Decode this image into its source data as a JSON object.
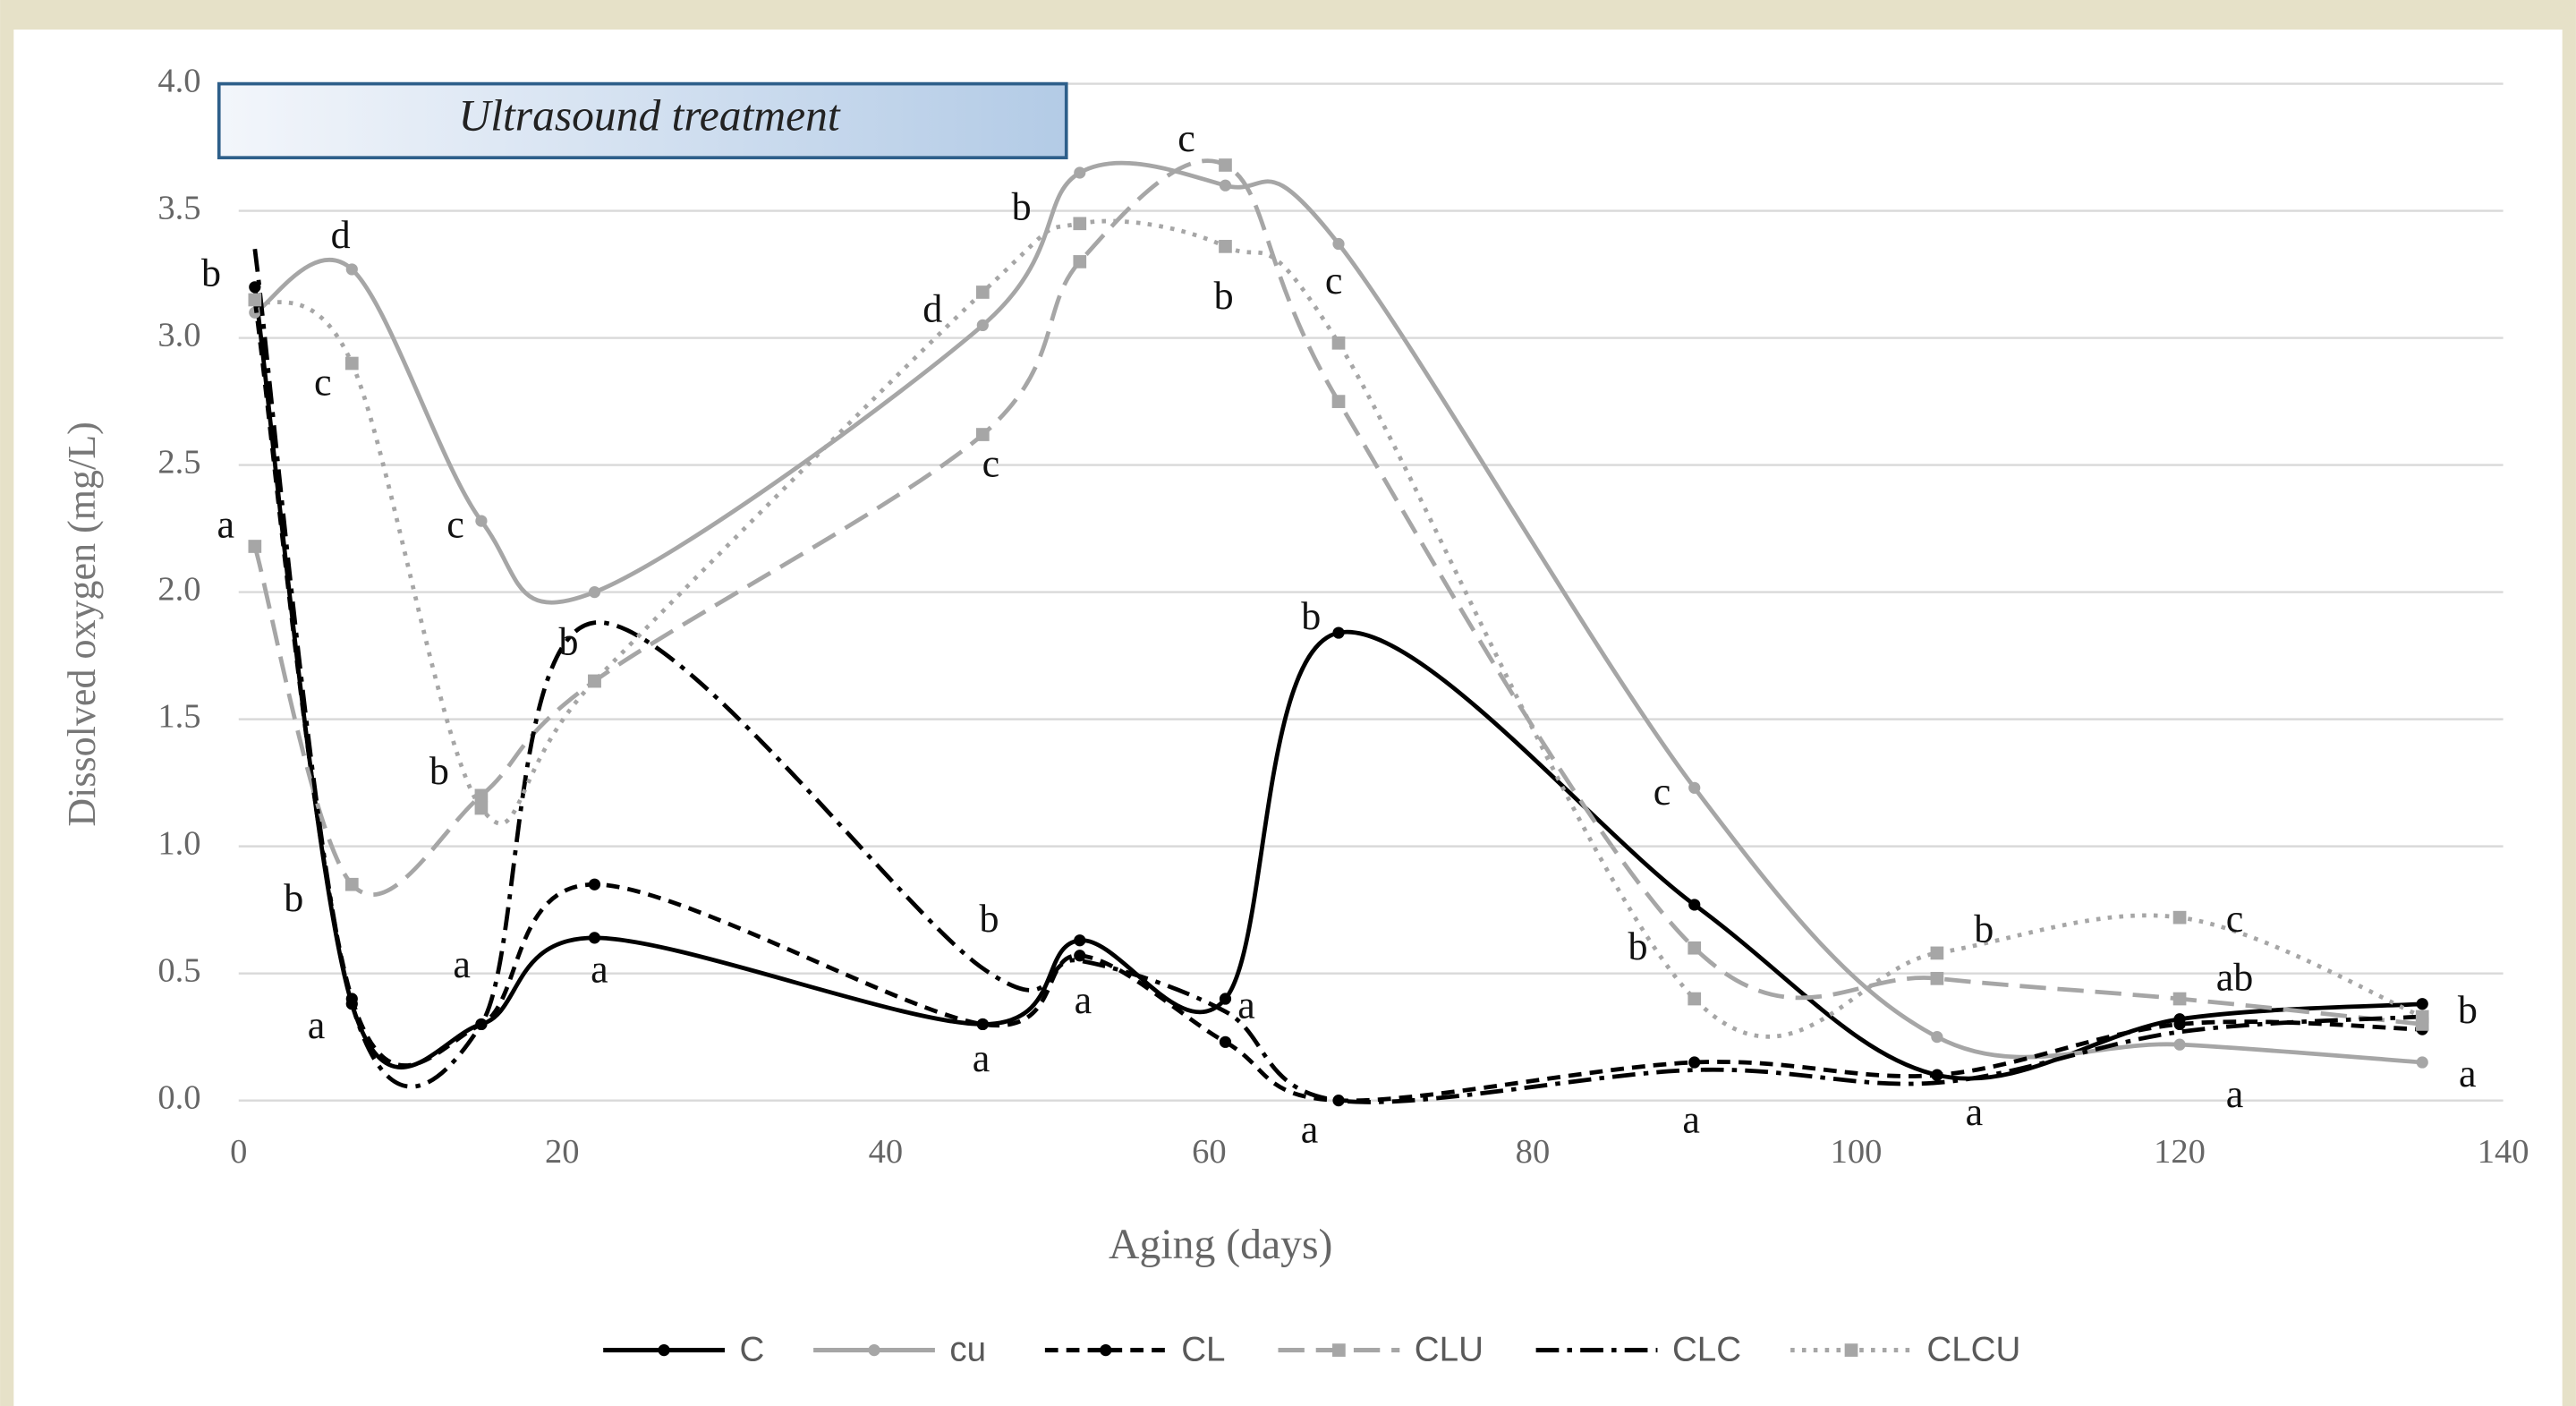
{
  "chart_data": {
    "type": "line",
    "box_text": "Ultrasound treatment",
    "x_label": "Aging (days)",
    "y_label": "Dissolved oxygen (mg/L)",
    "x": [
      1,
      7,
      15,
      22,
      46,
      52,
      61,
      68,
      90,
      105,
      120,
      135
    ],
    "xlim": [
      0,
      140
    ],
    "xticks": [
      0,
      20,
      40,
      60,
      80,
      100,
      120,
      140
    ],
    "ylim": [
      0,
      4
    ],
    "yticks": [
      {
        "value": 0,
        "label": "0.0"
      },
      {
        "value": 0.5,
        "label": "0.5"
      },
      {
        "value": 1,
        "label": "1.0"
      },
      {
        "value": 1.5,
        "label": "1.5"
      },
      {
        "value": 2,
        "label": "2.0"
      },
      {
        "value": 2.5,
        "label": "2.5"
      },
      {
        "value": 3,
        "label": "3.0"
      },
      {
        "value": 3.5,
        "label": "3.5"
      },
      {
        "value": 4,
        "label": "4.0"
      }
    ],
    "grid": true,
    "legend": "bottom",
    "series": [
      {
        "name": "C",
        "color": "#000000",
        "dash": "solid",
        "marker": "circle",
        "values": [
          3.2,
          0.38,
          0.3,
          0.64,
          0.3,
          0.63,
          0.4,
          1.84,
          0.77,
          0.1,
          0.32,
          0.38
        ]
      },
      {
        "name": "cu",
        "color": "#a6a6a6",
        "dash": "solid",
        "marker": "circle",
        "values": [
          3.1,
          3.27,
          2.28,
          2.0,
          3.05,
          3.65,
          3.6,
          3.37,
          1.23,
          0.25,
          0.22,
          0.15
        ]
      },
      {
        "name": "CL",
        "color": "#000000",
        "dash": "dashed",
        "marker": "circle",
        "values": [
          3.15,
          0.4,
          0.3,
          0.85,
          0.3,
          0.57,
          0.23,
          0,
          0.15,
          0.1,
          0.3,
          0.28
        ]
      },
      {
        "name": "CLU",
        "color": "#a6a6a6",
        "dash": "longdash",
        "marker": "square",
        "values": [
          2.18,
          0.85,
          1.2,
          1.65,
          2.62,
          3.3,
          3.68,
          2.75,
          0.6,
          0.48,
          0.4,
          0.3
        ]
      },
      {
        "name": "CLC",
        "color": "#000000",
        "dash": "dashdot",
        "marker": "none",
        "values": [
          3.35,
          0.38,
          0.3,
          1.88,
          0.52,
          0.55,
          0.35,
          0,
          0.12,
          0.07,
          0.27,
          0.33
        ]
      },
      {
        "name": "CLCU",
        "color": "#a6a6a6",
        "dash": "dotted",
        "marker": "square",
        "values": [
          3.15,
          2.9,
          1.15,
          1.65,
          3.18,
          3.45,
          3.36,
          2.98,
          0.4,
          0.58,
          0.72,
          0.33
        ]
      }
    ],
    "annotations": [
      {
        "text": "b",
        "x": -1.7,
        "y": 3.24
      },
      {
        "text": "d",
        "x": 6.3,
        "y": 3.39
      },
      {
        "text": "c",
        "x": 5.2,
        "y": 2.81
      },
      {
        "text": "a",
        "x": -0.8,
        "y": 2.25
      },
      {
        "text": "c",
        "x": 13.4,
        "y": 2.25
      },
      {
        "text": "b",
        "x": 12.4,
        "y": 1.28
      },
      {
        "text": "b",
        "x": 3.4,
        "y": 0.78
      },
      {
        "text": "a",
        "x": 4.8,
        "y": 0.28
      },
      {
        "text": "a",
        "x": 13.8,
        "y": 0.52
      },
      {
        "text": "b",
        "x": 20.4,
        "y": 1.79
      },
      {
        "text": "a",
        "x": 22.3,
        "y": 0.5
      },
      {
        "text": "d",
        "x": 42.9,
        "y": 3.1
      },
      {
        "text": "c",
        "x": 46.5,
        "y": 2.49
      },
      {
        "text": "b",
        "x": 48.4,
        "y": 3.5
      },
      {
        "text": "c",
        "x": 58.6,
        "y": 3.77
      },
      {
        "text": "b",
        "x": 60.9,
        "y": 3.15
      },
      {
        "text": "c",
        "x": 67.7,
        "y": 3.21
      },
      {
        "text": "b",
        "x": 46.4,
        "y": 0.7
      },
      {
        "text": "a",
        "x": 52.2,
        "y": 0.38
      },
      {
        "text": "a",
        "x": 45.9,
        "y": 0.15
      },
      {
        "text": "a",
        "x": 62.3,
        "y": 0.36
      },
      {
        "text": "b",
        "x": 66.3,
        "y": 1.89
      },
      {
        "text": "a",
        "x": 66.2,
        "y": -0.13
      },
      {
        "text": "c",
        "x": 88.0,
        "y": 1.2
      },
      {
        "text": "b",
        "x": 86.5,
        "y": 0.59
      },
      {
        "text": "a",
        "x": 89.8,
        "y": -0.09
      },
      {
        "text": "b",
        "x": 107.9,
        "y": 0.66
      },
      {
        "text": "a",
        "x": 107.3,
        "y": -0.06
      },
      {
        "text": "c",
        "x": 123.4,
        "y": 0.7
      },
      {
        "text": "ab",
        "x": 123.4,
        "y": 0.47
      },
      {
        "text": "a",
        "x": 123.4,
        "y": 0.01
      },
      {
        "text": "b",
        "x": 137.8,
        "y": 0.34
      },
      {
        "text": "a",
        "x": 137.8,
        "y": 0.09
      }
    ]
  }
}
